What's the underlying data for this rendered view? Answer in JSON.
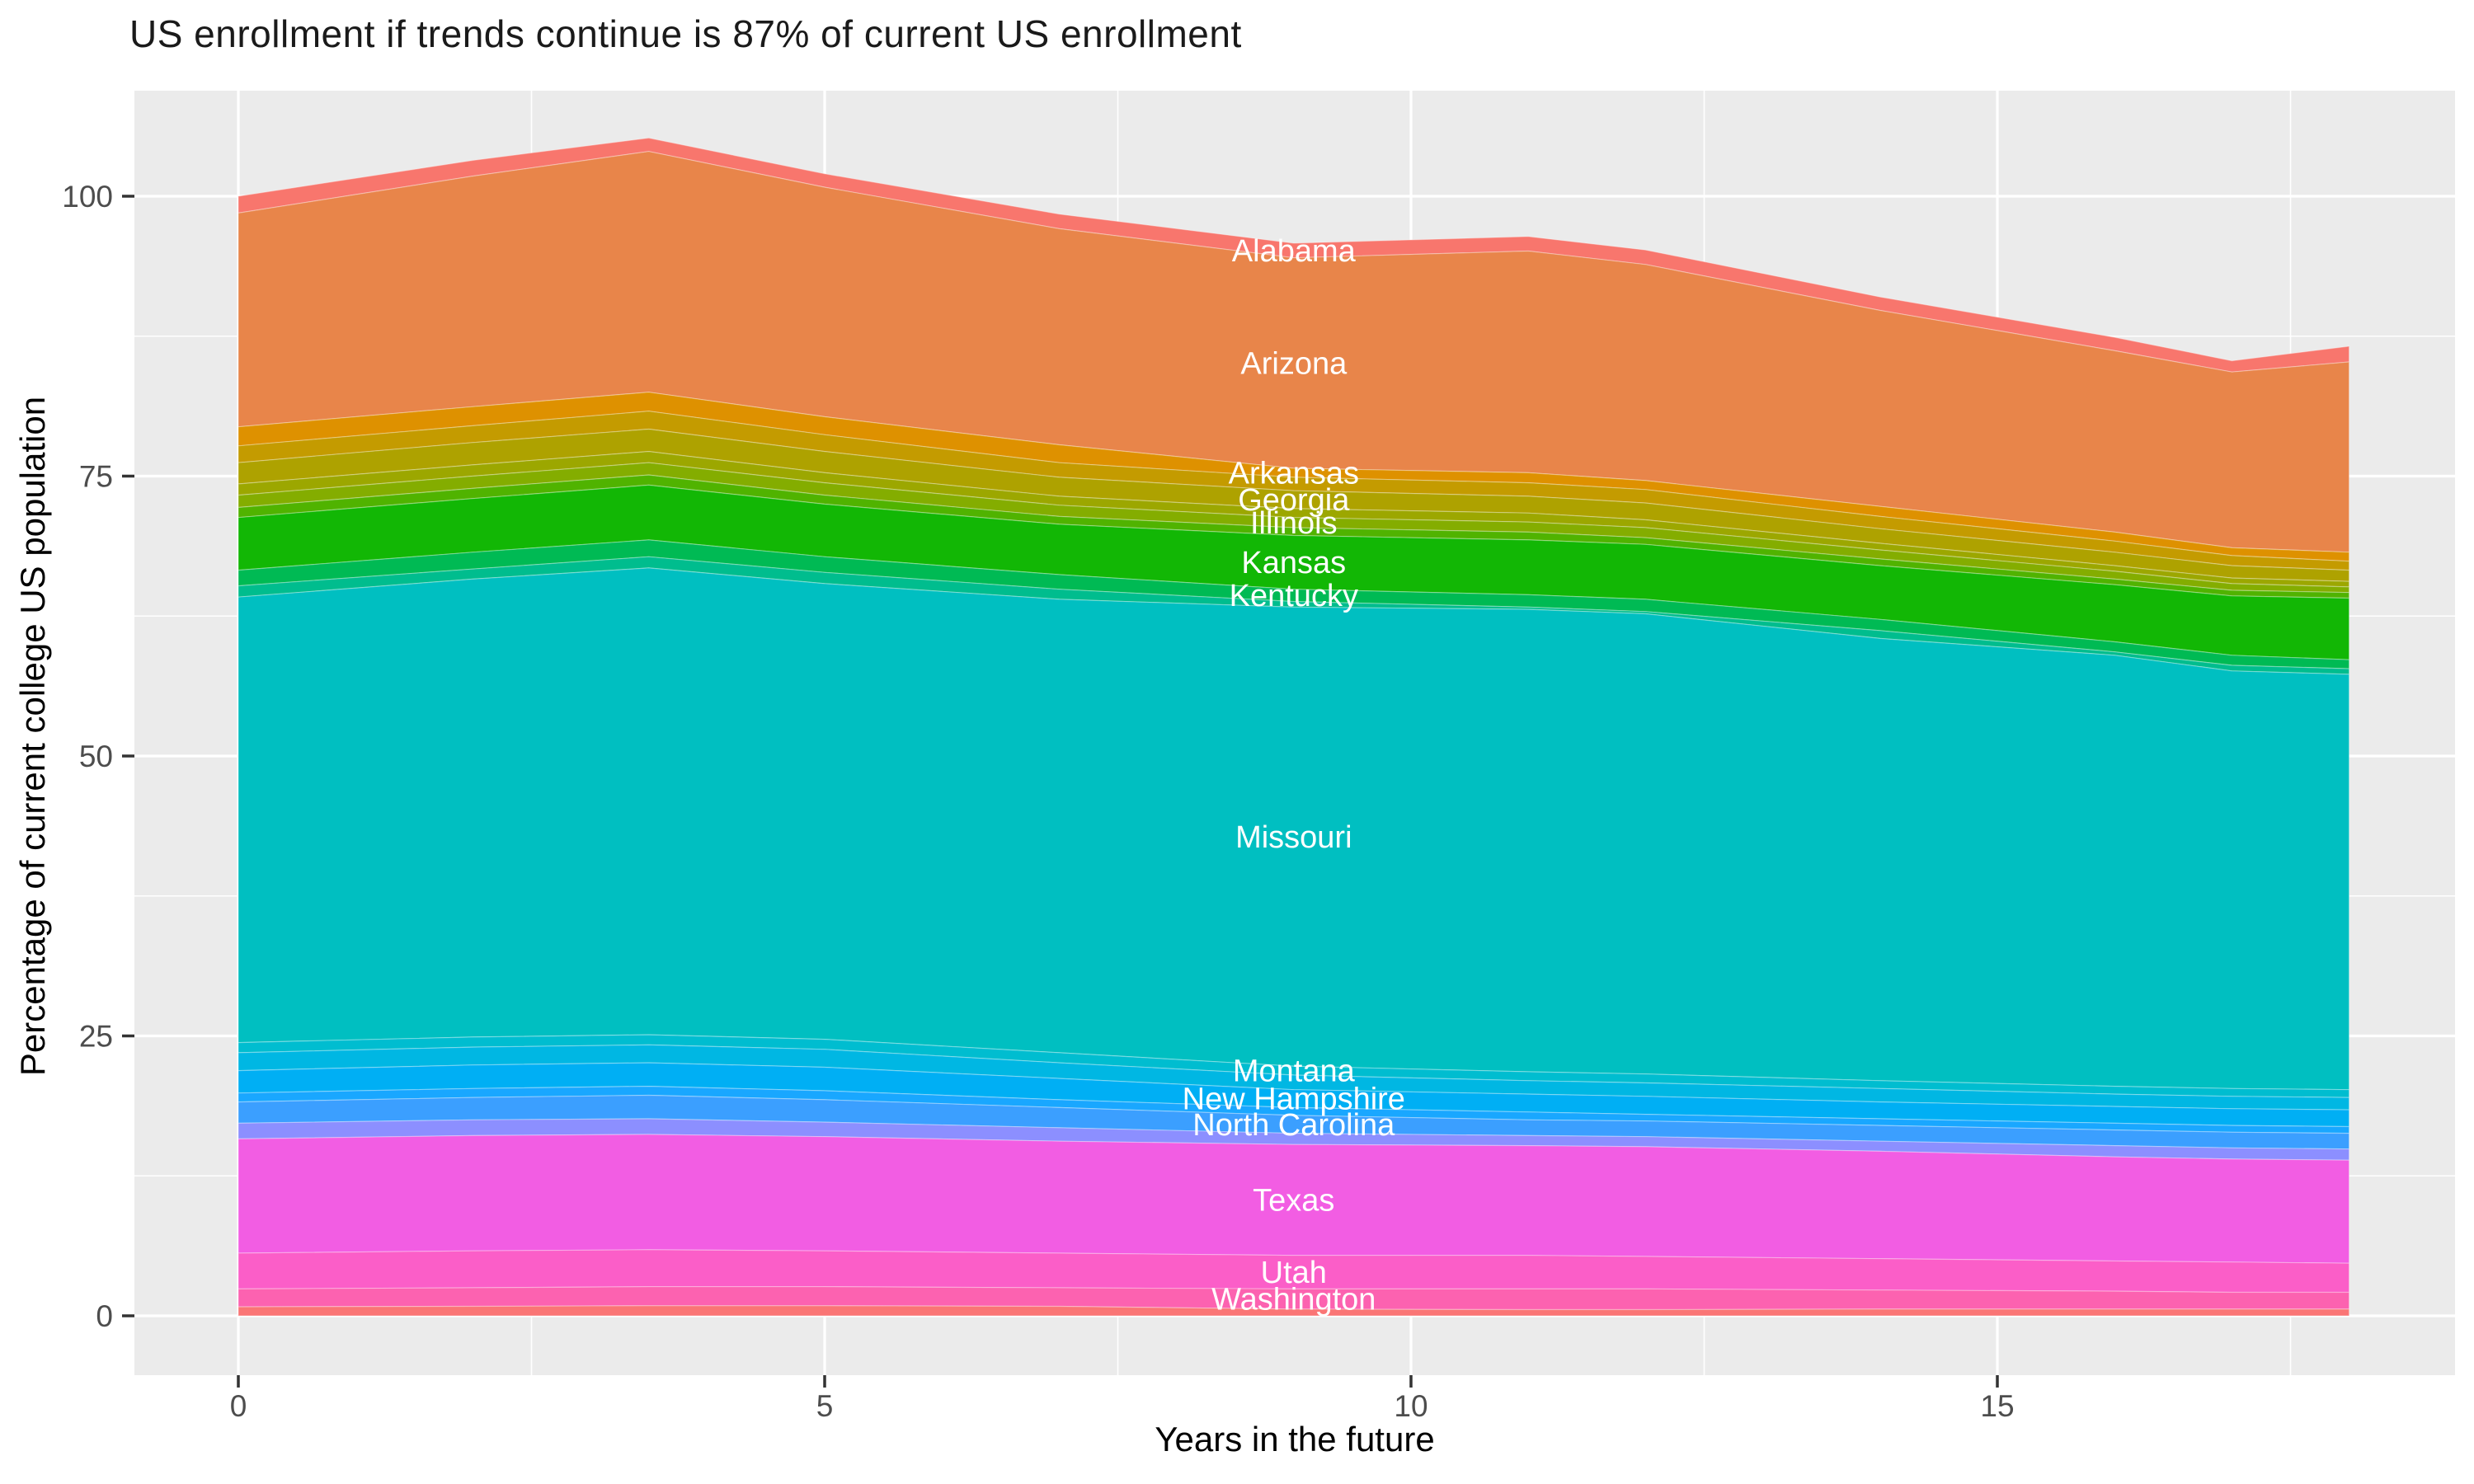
{
  "title": "US enrollment if trends continue is 87% of current US enrollment",
  "axes": {
    "x_title": "Years in the future",
    "y_title": "Percentage of current college US population",
    "x_ticks": [
      0,
      5,
      10,
      15
    ],
    "y_ticks": [
      0,
      25,
      50,
      75,
      100
    ],
    "x_minor": [
      2.5,
      7.5,
      12.5,
      17.5
    ],
    "y_minor": [
      12.5,
      37.5,
      62.5,
      87.5
    ]
  },
  "style": {
    "panel_bg": "#EBEBEB",
    "grid_color": "#FFFFFF",
    "tick_label_color": "#4D4D4D",
    "tick_mark_color": "#333333",
    "band_label_color": "#FFFFFF"
  },
  "chart_data": {
    "type": "area",
    "stacked": true,
    "title": "US enrollment if trends continue is 87% of current US enrollment",
    "xlabel": "Years in the future",
    "ylabel": "Percentage of current college US population",
    "xlim": [
      0,
      18
    ],
    "ylim": [
      0,
      109
    ],
    "label_x_year": 9,
    "note": "Stacked area of state shares; bands listed top-to-bottom. 'top' gives each band's upper boundary (percent) at the anchor years; a band's lower boundary is the next band's top, last band bottoms at 0. Unlabeled thin bands had no visible text in the figure.",
    "anchor_years": [
      0,
      2,
      3.5,
      5,
      7,
      9,
      11,
      12,
      14,
      16,
      17,
      18
    ],
    "total": [
      100.0,
      103.2,
      105.2,
      102.0,
      98.4,
      95.8,
      96.4,
      95.2,
      91.0,
      87.4,
      85.3,
      86.6
    ],
    "bands": [
      {
        "label": "Alabama",
        "color": "#F8766D",
        "top": [
          100.0,
          103.2,
          105.2,
          102.0,
          98.4,
          95.8,
          96.4,
          95.2,
          91.0,
          87.4,
          85.3,
          86.6
        ]
      },
      {
        "label": "Arizona",
        "color": "#E8854A",
        "top": [
          98.5,
          101.8,
          104.0,
          100.8,
          97.1,
          94.5,
          95.1,
          93.9,
          89.8,
          86.2,
          84.3,
          85.2
        ]
      },
      {
        "label": "Arkansas",
        "color": "#DE9100",
        "top": [
          79.4,
          81.2,
          82.5,
          80.3,
          77.8,
          75.7,
          75.3,
          74.6,
          72.3,
          70.0,
          68.6,
          68.2
        ]
      },
      {
        "label": "",
        "color": "#C49B00",
        "top": [
          77.7,
          79.5,
          80.8,
          78.7,
          76.2,
          74.9,
          74.4,
          73.8,
          71.4,
          69.2,
          67.9,
          67.4
        ]
      },
      {
        "label": "Georgia",
        "color": "#AEA200",
        "top": [
          76.2,
          78.0,
          79.2,
          77.2,
          74.9,
          73.7,
          73.2,
          72.6,
          70.3,
          68.2,
          67.0,
          66.6
        ]
      },
      {
        "label": "",
        "color": "#9CA700",
        "top": [
          74.3,
          76.0,
          77.2,
          75.3,
          73.2,
          72.1,
          71.7,
          71.1,
          69.0,
          67.0,
          65.9,
          65.6
        ]
      },
      {
        "label": "Illinois",
        "color": "#84AD00",
        "top": [
          73.3,
          75.0,
          76.2,
          74.4,
          72.4,
          71.3,
          70.9,
          70.4,
          68.4,
          66.5,
          65.4,
          65.1
        ]
      },
      {
        "label": "",
        "color": "#50B300",
        "top": [
          72.2,
          73.9,
          75.1,
          73.3,
          71.4,
          70.4,
          70.0,
          69.5,
          67.6,
          65.8,
          64.8,
          64.6
        ]
      },
      {
        "label": "Kansas",
        "color": "#12B705",
        "top": [
          71.3,
          73.0,
          74.2,
          72.5,
          70.7,
          69.7,
          69.3,
          68.9,
          67.0,
          65.3,
          64.3,
          64.1
        ]
      },
      {
        "label": "Kentucky",
        "color": "#00BA54",
        "top": [
          66.6,
          68.2,
          69.3,
          67.8,
          66.2,
          64.9,
          64.4,
          64.0,
          62.2,
          60.2,
          59.0,
          58.6
        ]
      },
      {
        "label": "",
        "color": "#00BD8E",
        "top": [
          65.2,
          66.7,
          67.8,
          66.4,
          64.9,
          63.8,
          63.3,
          62.9,
          61.2,
          59.3,
          58.1,
          57.8
        ]
      },
      {
        "label": "Missouri",
        "color": "#00BFC1",
        "top": [
          64.2,
          65.8,
          66.8,
          65.4,
          64.0,
          63.3,
          63.1,
          62.7,
          60.5,
          59.0,
          57.6,
          57.3
        ]
      },
      {
        "label": "Montana",
        "color": "#00BDD0",
        "top": [
          24.4,
          24.9,
          25.1,
          24.7,
          23.5,
          22.3,
          21.8,
          21.6,
          21.0,
          20.5,
          20.3,
          20.2
        ]
      },
      {
        "label": "",
        "color": "#00B7E3",
        "top": [
          23.5,
          24.0,
          24.2,
          23.8,
          22.6,
          21.5,
          21.0,
          20.8,
          20.3,
          19.8,
          19.6,
          19.5
        ]
      },
      {
        "label": "New Hampshire",
        "color": "#00AFF4",
        "top": [
          21.9,
          22.4,
          22.6,
          22.2,
          21.2,
          20.2,
          19.8,
          19.6,
          19.1,
          18.7,
          18.5,
          18.4
        ]
      },
      {
        "label": "",
        "color": "#19A7FF",
        "top": [
          19.9,
          20.3,
          20.5,
          20.1,
          19.3,
          18.6,
          18.2,
          18.0,
          17.6,
          17.2,
          17.0,
          16.9
        ]
      },
      {
        "label": "North Carolina",
        "color": "#3B9FFF",
        "top": [
          19.1,
          19.5,
          19.7,
          19.3,
          18.6,
          17.9,
          17.5,
          17.4,
          17.0,
          16.6,
          16.4,
          16.3
        ]
      },
      {
        "label": "",
        "color": "#8C8FFF",
        "top": [
          17.2,
          17.5,
          17.6,
          17.3,
          16.8,
          16.3,
          16.1,
          16.0,
          15.6,
          15.2,
          15.0,
          14.9
        ]
      },
      {
        "label": "Texas",
        "color": "#F25DE3",
        "top": [
          15.8,
          16.1,
          16.2,
          16.0,
          15.6,
          15.3,
          15.2,
          15.1,
          14.7,
          14.2,
          14.0,
          13.9
        ]
      },
      {
        "label": "Utah",
        "color": "#FB5EC8",
        "top": [
          5.6,
          5.8,
          5.9,
          5.8,
          5.6,
          5.4,
          5.4,
          5.3,
          5.1,
          4.9,
          4.8,
          4.7
        ]
      },
      {
        "label": "Washington",
        "color": "#FC62B0",
        "top": [
          2.4,
          2.5,
          2.6,
          2.6,
          2.5,
          2.4,
          2.4,
          2.4,
          2.3,
          2.2,
          2.1,
          2.1
        ]
      },
      {
        "label": "",
        "color": "#FA7575",
        "top": [
          0.8,
          0.85,
          0.9,
          0.9,
          0.85,
          0.6,
          0.55,
          0.55,
          0.6,
          0.6,
          0.6,
          0.6
        ]
      }
    ]
  }
}
